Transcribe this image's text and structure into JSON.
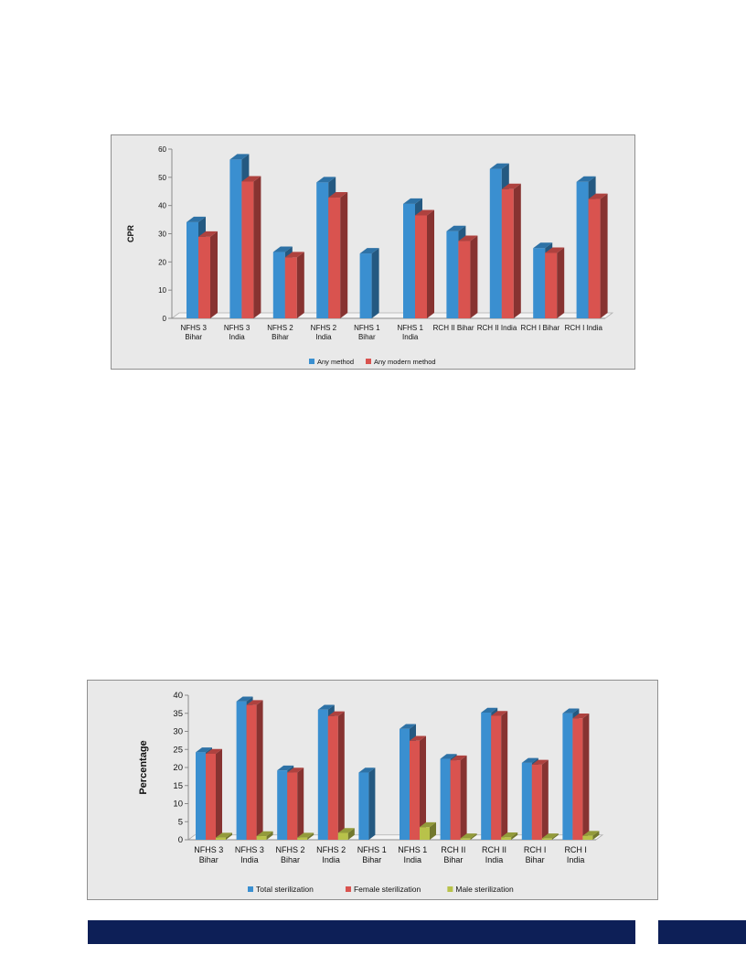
{
  "chart_data": [
    {
      "type": "bar",
      "title": "",
      "xlabel": "",
      "ylabel": "CPR",
      "ylim": [
        0,
        60
      ],
      "yticks": [
        0,
        10,
        20,
        30,
        40,
        50,
        60
      ],
      "categories": [
        [
          "NFHS 3",
          "Bihar"
        ],
        [
          "NFHS 3",
          "India"
        ],
        [
          "NFHS 2",
          "Bihar"
        ],
        [
          "NFHS 2",
          "India"
        ],
        [
          "NFHS 1",
          "Bihar"
        ],
        [
          "NFHS 1",
          "India"
        ],
        [
          "RCH  II Bihar"
        ],
        [
          "RCH  II  India"
        ],
        [
          "RCH I Bihar"
        ],
        [
          "RCH I  India"
        ]
      ],
      "series": [
        {
          "name": "Any method",
          "color": "#3a8fd0",
          "values": [
            34.1,
            56.3,
            23.5,
            48.2,
            23.0,
            40.6,
            30.9,
            53.0,
            24.9,
            48.4
          ]
        },
        {
          "name": "Any modern method",
          "color": "#d9534f",
          "values": [
            28.9,
            48.5,
            21.6,
            42.8,
            null,
            36.5,
            27.4,
            45.8,
            23.2,
            42.3
          ]
        }
      ],
      "legend": "bottom",
      "grid": false
    },
    {
      "type": "bar",
      "title": "",
      "xlabel": "",
      "ylabel": "Percentage",
      "ylim": [
        0,
        40
      ],
      "yticks": [
        0,
        5,
        10,
        15,
        20,
        25,
        30,
        35,
        40
      ],
      "categories": [
        [
          "NFHS 3",
          "Bihar"
        ],
        [
          "NFHS 3",
          "India"
        ],
        [
          "NFHS 2",
          "Bihar"
        ],
        [
          "NFHS 2",
          "India"
        ],
        [
          "NFHS 1",
          "Bihar"
        ],
        [
          "NFHS 1",
          "India"
        ],
        [
          "RCH II",
          "Bihar"
        ],
        [
          "RCH II",
          "India"
        ],
        [
          "RCH I",
          "Bihar"
        ],
        [
          "RCH I",
          "India"
        ]
      ],
      "series": [
        {
          "name": "Total sterilization",
          "color": "#3a8fd0",
          "values": [
            24.2,
            38.3,
            19.2,
            36.0,
            18.6,
            30.7,
            22.4,
            35.2,
            21.3,
            35.0
          ]
        },
        {
          "name": "Female sterilization",
          "color": "#d9534f",
          "values": [
            23.8,
            37.3,
            18.6,
            34.2,
            null,
            27.4,
            22.0,
            34.3,
            20.8,
            33.6
          ]
        },
        {
          "name": "Male sterilization",
          "color": "#b8c24a",
          "values": [
            0.6,
            1.0,
            0.6,
            1.9,
            null,
            3.5,
            0.4,
            0.7,
            0.4,
            1.1
          ]
        }
      ],
      "legend": "bottom",
      "grid": false
    }
  ]
}
